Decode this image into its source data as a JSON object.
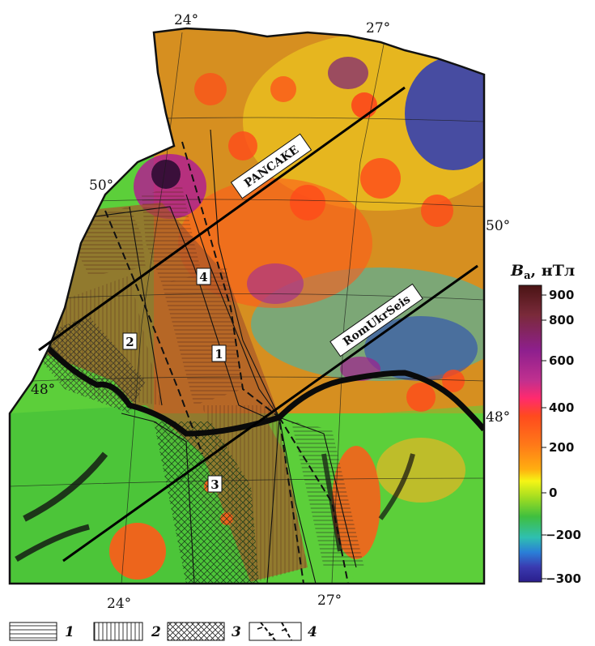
{
  "map": {
    "lon_labels_top": [
      "24°",
      "27°"
    ],
    "lon_labels_bottom": [
      "24°",
      "27°"
    ],
    "lat_labels_left": [
      "50°",
      "48°"
    ],
    "lat_labels_right": [
      "50°",
      "48°"
    ],
    "profiles": [
      "PANCAKE",
      "RomUkrSeis"
    ],
    "zone_numbers": [
      "1",
      "2",
      "3",
      "4"
    ]
  },
  "colorbar": {
    "title": "B",
    "title_subscript": "a",
    "title_unit": ", нТл",
    "ticks": [
      "900",
      "800",
      "600",
      "400",
      "200",
      "0",
      "−200",
      "−300"
    ],
    "colors": [
      "#4a1414",
      "#7a2a3a",
      "#8e1f8e",
      "#c0308f",
      "#ff2a6e",
      "#ff4a1e",
      "#ff7a18",
      "#ffae10",
      "#f5f515",
      "#9bdb22",
      "#3fbf3f",
      "#2fbfb0",
      "#2a7fd8",
      "#3a3ab0",
      "#2a1e8c"
    ]
  },
  "legend": {
    "items": [
      {
        "num": "1",
        "pattern": "horizontal-hatch"
      },
      {
        "num": "2",
        "pattern": "vertical-hatch"
      },
      {
        "num": "3",
        "pattern": "cross-hatch"
      },
      {
        "num": "4",
        "pattern": "fault-line"
      }
    ]
  }
}
